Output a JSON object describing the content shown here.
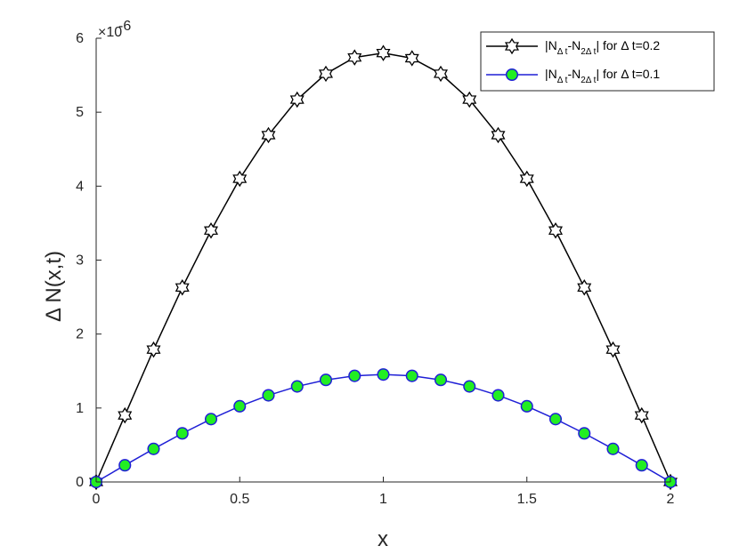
{
  "chart_data": {
    "type": "line",
    "title": "",
    "xlabel": "x",
    "ylabel": "Δ N(x,t)",
    "y_exponent_label": "×10",
    "y_exponent_power": "-6",
    "xlim": [
      0,
      2
    ],
    "ylim": [
      0,
      6
    ],
    "xticks": [
      "0",
      "0.5",
      "1",
      "1.5",
      "2"
    ],
    "yticks": [
      "0",
      "1",
      "2",
      "3",
      "4",
      "5",
      "6"
    ],
    "grid": false,
    "legend_position": "top-right",
    "x": [
      0,
      0.1,
      0.2,
      0.3,
      0.4,
      0.5,
      0.6,
      0.7,
      0.8,
      0.9,
      1.0,
      1.1,
      1.2,
      1.3,
      1.4,
      1.5,
      1.6,
      1.7,
      1.8,
      1.9,
      2.0
    ],
    "series": [
      {
        "label": {
          "pre": "|N",
          "sub1": "Δ t",
          "mid": "-N",
          "sub2": "2Δ t",
          "post": "| for Δ t=0.2"
        },
        "color": "#000000",
        "marker": "hexagram",
        "marker_fill": "#ffffff",
        "values": [
          0,
          0.9,
          1.79,
          2.63,
          3.4,
          4.1,
          4.69,
          5.17,
          5.52,
          5.74,
          5.8,
          5.73,
          5.52,
          5.17,
          4.69,
          4.1,
          3.4,
          2.63,
          1.79,
          0.9,
          0
        ]
      },
      {
        "label": {
          "pre": "|N",
          "sub1": "Δ t",
          "mid": "-N",
          "sub2": "2Δ t",
          "post": "| for Δ t=0.1"
        },
        "color": "#1f1fd6",
        "marker": "circle",
        "marker_fill": "#22ee22",
        "values": [
          0,
          0.226,
          0.447,
          0.657,
          0.85,
          1.024,
          1.172,
          1.292,
          1.38,
          1.435,
          1.453,
          1.435,
          1.38,
          1.292,
          1.172,
          1.024,
          0.85,
          0.657,
          0.447,
          0.226,
          0
        ]
      }
    ]
  }
}
